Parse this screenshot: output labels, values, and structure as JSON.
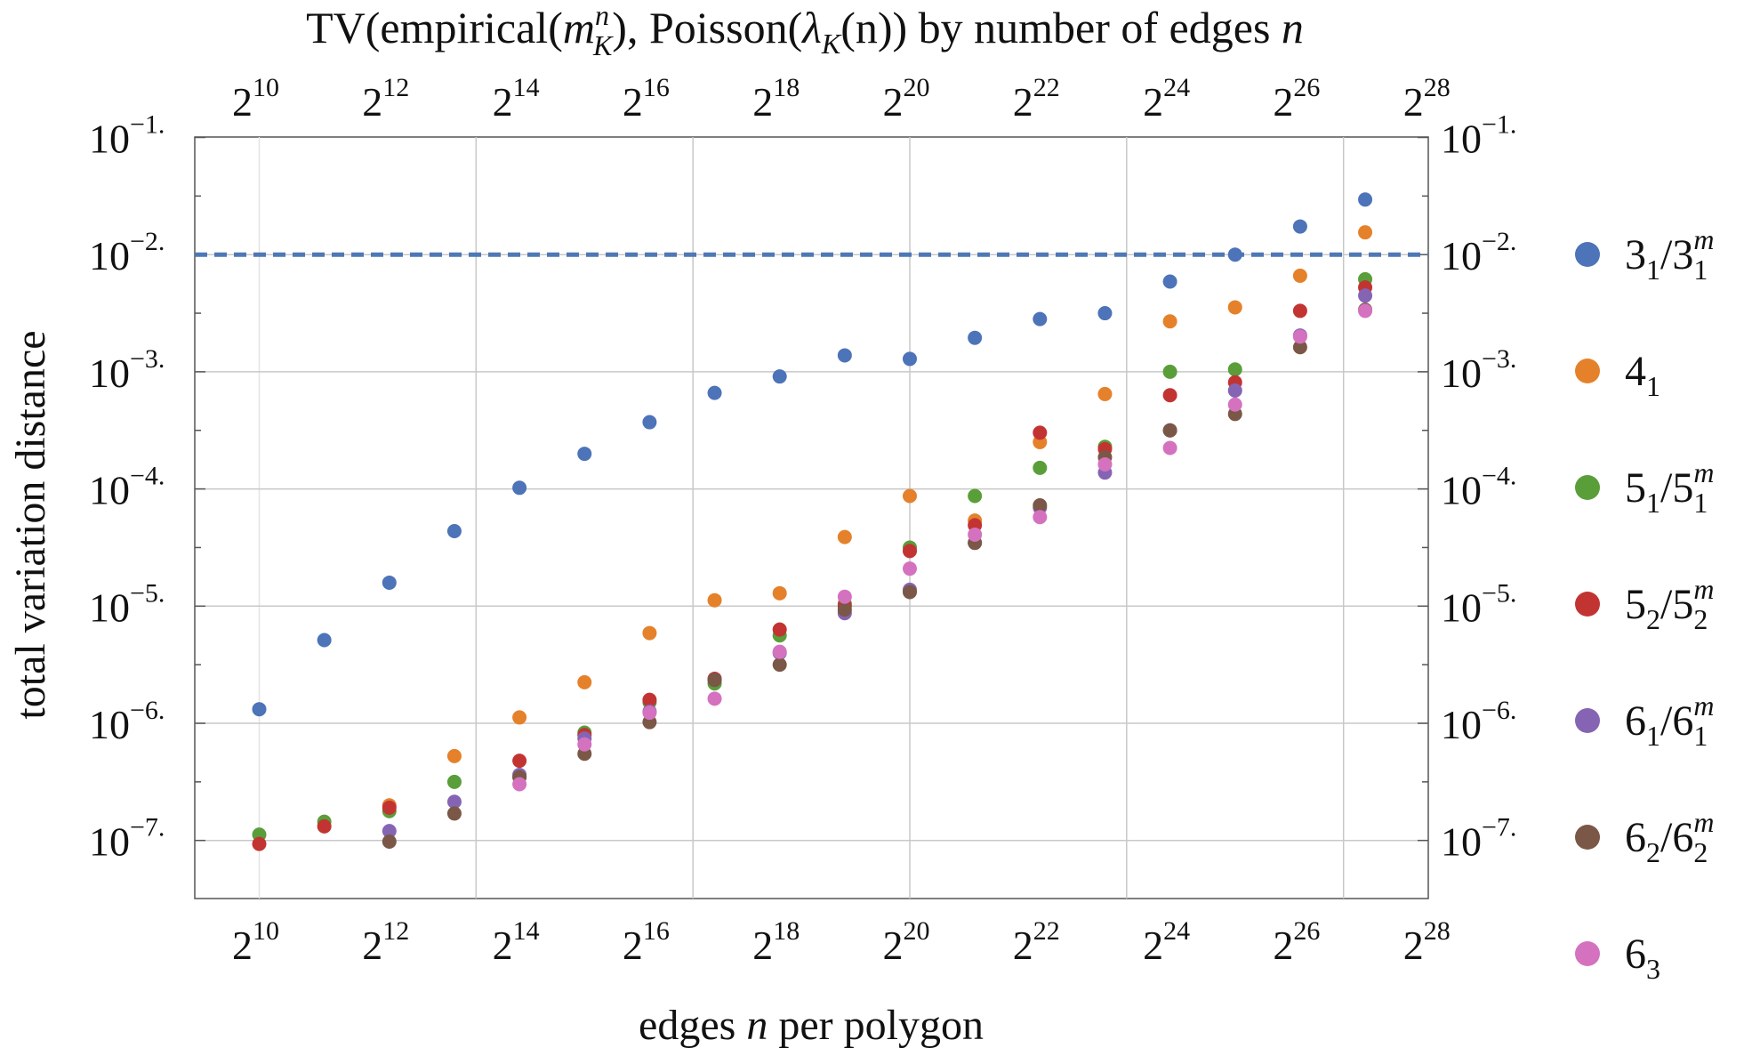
{
  "chart_data": {
    "type": "scatter",
    "title": "TV(empirical(m_K^n), Poisson(λ_K(n)) by number of edges n",
    "title_parts": {
      "prefix": "TV(empirical(",
      "m": "m",
      "m_sup": "n",
      "m_sub": "K",
      "middle": "), Poisson(",
      "lambda": "λ",
      "lambda_sub": "K",
      "suffix_inner": "(n)) by number of edges ",
      "n": "n"
    },
    "xlabel": "edges n per polygon",
    "xlabel_parts": {
      "pre": "edges ",
      "n": "n",
      "post": " per polygon"
    },
    "ylabel": "total variation distance",
    "x_scale": "log2",
    "y_scale": "log10",
    "xlim_log2": [
      9,
      28
    ],
    "ylim_log10": [
      -7.5,
      -1
    ],
    "x_ticks": [
      {
        "base": "2",
        "exp": "10"
      },
      {
        "base": "2",
        "exp": "12"
      },
      {
        "base": "2",
        "exp": "14"
      },
      {
        "base": "2",
        "exp": "16"
      },
      {
        "base": "2",
        "exp": "18"
      },
      {
        "base": "2",
        "exp": "20"
      },
      {
        "base": "2",
        "exp": "22"
      },
      {
        "base": "2",
        "exp": "24"
      },
      {
        "base": "2",
        "exp": "26"
      },
      {
        "base": "2",
        "exp": "28"
      }
    ],
    "x_tick_exponents": [
      10,
      12,
      14,
      16,
      18,
      20,
      22,
      24,
      26,
      28
    ],
    "y_ticks": [
      {
        "base": "10",
        "exp": "−1."
      },
      {
        "base": "10",
        "exp": "−2."
      },
      {
        "base": "10",
        "exp": "−3."
      },
      {
        "base": "10",
        "exp": "−4."
      },
      {
        "base": "10",
        "exp": "−5."
      },
      {
        "base": "10",
        "exp": "−6."
      },
      {
        "base": "10",
        "exp": "−7."
      }
    ],
    "y_tick_exponents": [
      -1,
      -2,
      -3,
      -4,
      -5,
      -6,
      -7
    ],
    "x_gridlines_log2": [
      13.333,
      16.667,
      20,
      23.333,
      26.667
    ],
    "y_gridlines_log10": [
      -2,
      -3,
      -4,
      -5,
      -6,
      -7
    ],
    "threshold": {
      "value": 0.01,
      "style": "dashed",
      "color": "#4e78b6"
    },
    "legend_position": "right",
    "x_log2": [
      10,
      11,
      12,
      13,
      14,
      15,
      16,
      17,
      18,
      19,
      20,
      21,
      22,
      23,
      24,
      25,
      26,
      27
    ],
    "series": [
      {
        "name": "3_1/3_1^m",
        "label": {
          "a": "3",
          "a_sub": "1",
          "b": "/3",
          "b_sub": "1",
          "b_sup": "m"
        },
        "color": "#4d73b8",
        "log10_values": [
          -5.88,
          -5.29,
          -4.8,
          -4.36,
          -3.99,
          -3.7,
          -3.43,
          -3.18,
          -3.04,
          -2.86,
          -2.89,
          -2.71,
          -2.55,
          -2.5,
          -2.23,
          -2.0,
          -1.76,
          -1.53
        ]
      },
      {
        "name": "4_1",
        "label": {
          "a": "4",
          "a_sub": "1",
          "b": "",
          "b_sub": "",
          "b_sup": ""
        },
        "color": "#e5812b",
        "log10_values": [
          null,
          null,
          -6.7,
          -6.28,
          -5.95,
          -5.65,
          -5.23,
          -4.95,
          -4.89,
          -4.41,
          -4.06,
          -4.27,
          -3.6,
          -3.19,
          -2.57,
          -2.45,
          -2.18,
          -1.81
        ]
      },
      {
        "name": "5_1/5_1^m",
        "label": {
          "a": "5",
          "a_sub": "1",
          "b": "/5",
          "b_sub": "1",
          "b_sup": "m"
        },
        "color": "#5a9e3a",
        "log10_values": [
          -6.95,
          -6.84,
          -6.75,
          -6.5,
          -6.46,
          -6.08,
          -5.82,
          -5.66,
          -5.25,
          -4.98,
          -4.5,
          -4.06,
          -3.82,
          -3.64,
          -3.0,
          -2.98,
          null,
          -2.21
        ]
      },
      {
        "name": "5_2/5_2^m",
        "label": {
          "a": "5",
          "a_sub": "2",
          "b": "/5",
          "b_sub": "2",
          "b_sup": "m"
        },
        "color": "#c23432",
        "log10_values": [
          -7.03,
          -6.88,
          -6.72,
          null,
          -6.32,
          -6.1,
          -5.8,
          -5.62,
          -5.2,
          -5.0,
          -4.53,
          -4.31,
          -3.52,
          -3.66,
          -3.2,
          -3.09,
          -2.48,
          -2.28
        ]
      },
      {
        "name": "6_1/6_1^m",
        "label": {
          "a": "6",
          "a_sub": "1",
          "b": "/6",
          "b_sub": "1",
          "b_sup": "m"
        },
        "color": "#8664b4",
        "log10_values": [
          null,
          null,
          -6.92,
          -6.67,
          -6.44,
          -6.13,
          -5.9,
          -5.63,
          -5.4,
          -5.06,
          -4.86,
          -4.46,
          -4.16,
          -3.86,
          -3.5,
          -3.16,
          -2.69,
          -2.35
        ]
      },
      {
        "name": "6_2/6_2^m",
        "label": {
          "a": "6",
          "a_sub": "2",
          "b": "/6",
          "b_sub": "2",
          "b_sup": "m"
        },
        "color": "#7a5746",
        "log10_values": [
          null,
          null,
          -7.01,
          -6.77,
          -6.46,
          -6.26,
          -5.99,
          -5.63,
          -5.5,
          -5.03,
          -4.88,
          -4.46,
          -4.14,
          -3.73,
          -3.5,
          -3.36,
          -2.79,
          -2.47
        ]
      },
      {
        "name": "6_3",
        "label": {
          "a": "6",
          "a_sub": "3",
          "b": "",
          "b_sub": "",
          "b_sup": ""
        },
        "color": "#d472c0",
        "log10_values": [
          null,
          null,
          null,
          null,
          -6.52,
          -6.18,
          -5.91,
          -5.79,
          -5.39,
          -4.92,
          -4.68,
          -4.39,
          -4.24,
          -3.79,
          -3.65,
          -3.28,
          -2.7,
          -2.48
        ]
      }
    ]
  }
}
